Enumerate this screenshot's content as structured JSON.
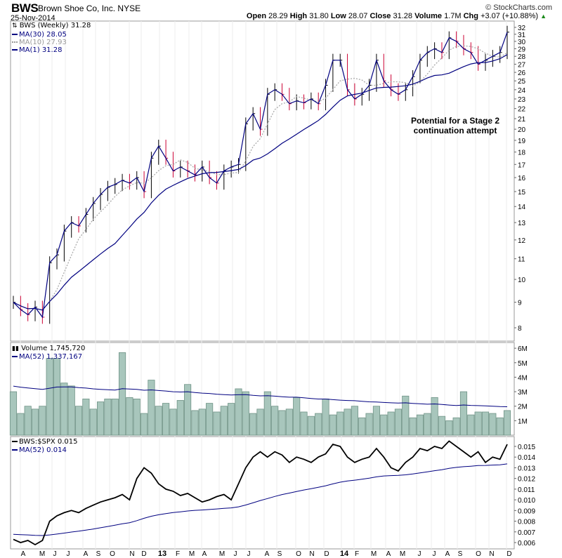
{
  "header": {
    "symbol": "BWS",
    "company": "Brown Shoe Co, Inc.",
    "exchange": "NYSE",
    "date": "25-Nov-2014",
    "copyright": "© StockCharts.com",
    "open_label": "Open",
    "open": "28.29",
    "high_label": "High",
    "high": "31.80",
    "low_label": "Low",
    "low": "28.07",
    "close_label": "Close",
    "close": "31.28",
    "volume_label": "Volume",
    "volume": "1.7M",
    "chg_label": "Chg",
    "chg": "+3.07 (+10.88%)"
  },
  "legends": {
    "price": "BWS (Weekly) 31.28",
    "ma30": "MA(30) 28.05",
    "ma10": "MA(10) 27.93",
    "ma1": "MA(1) 31.28",
    "volume": "Volume 1,745,720",
    "vol_ma": "MA(52) 1,337,167",
    "ratio": "BWS:$SPX 0.015",
    "ratio_ma": "MA(52) 0.014"
  },
  "annotation": {
    "line1": "Potential for a Stage 2",
    "line2": "continuation attempt"
  },
  "colors": {
    "price": "#000080",
    "up_bar": "#000000",
    "down_bar": "#cc0033",
    "ma30": "#000080",
    "ma10": "#aaaaaa",
    "volume": "#a8c6bc",
    "volume_edge": "#6f9386",
    "ratio": "#000000",
    "ratio_ma": "#000080"
  },
  "chart_data": [
    {
      "type": "line",
      "title": "BWS (Weekly)",
      "scale": "log",
      "ylim": [
        8,
        32
      ],
      "yticks": [
        8,
        9,
        10,
        11,
        12,
        13,
        14,
        15,
        16,
        17,
        18,
        19,
        20,
        21,
        22,
        23,
        24,
        25,
        26,
        27,
        28,
        29,
        30,
        31,
        32
      ],
      "x_labels": [
        "A",
        "M",
        "J",
        "J",
        "A",
        "S",
        "O",
        "N",
        "D",
        "13",
        "F",
        "M",
        "A",
        "M",
        "J",
        "J",
        "A",
        "S",
        "O",
        "N",
        "D",
        "14",
        "F",
        "M",
        "A",
        "M",
        "J",
        "J",
        "A",
        "S",
        "O",
        "N",
        "D"
      ],
      "close": [
        9.0,
        8.7,
        8.5,
        8.8,
        8.4,
        10.8,
        11.2,
        12.5,
        13.0,
        12.8,
        13.5,
        14.2,
        14.8,
        15.3,
        15.5,
        15.8,
        15.6,
        16.0,
        15.0,
        17.5,
        18.5,
        17.5,
        16.5,
        16.8,
        16.5,
        16.2,
        16.8,
        16.0,
        15.6,
        16.5,
        16.8,
        17.0,
        20.5,
        21.5,
        20.0,
        23.5,
        24.0,
        23.5,
        22.5,
        22.8,
        22.6,
        23.0,
        22.5,
        24.5,
        27.5,
        27.5,
        24.0,
        23.0,
        23.5,
        24.5,
        27.5,
        25.0,
        24.0,
        23.5,
        24.0,
        25.5,
        27.5,
        28.5,
        29.0,
        28.5,
        30.5,
        30.0,
        29.0,
        28.5,
        27.0,
        27.5,
        28.0,
        28.5,
        31.3
      ],
      "ma_periods": {
        "ma30": 15,
        "ma10": 5
      }
    },
    {
      "type": "bar",
      "title": "Volume",
      "unit": "M",
      "ylim": [
        0,
        6.2
      ],
      "yticks": [
        1,
        2,
        3,
        4,
        5,
        6
      ],
      "ytick_labels": [
        "1M",
        "2M",
        "3M",
        "4M",
        "5M",
        "6M"
      ],
      "values": [
        3.0,
        1.5,
        2.0,
        1.8,
        2.0,
        5.3,
        5.3,
        3.6,
        3.4,
        2.0,
        2.5,
        1.8,
        2.3,
        2.5,
        2.5,
        5.7,
        2.6,
        2.5,
        1.5,
        3.8,
        2.0,
        2.2,
        1.8,
        2.4,
        3.5,
        1.7,
        1.8,
        2.2,
        1.6,
        2.0,
        2.2,
        3.2,
        3.0,
        1.5,
        1.8,
        3.0,
        2.0,
        1.7,
        1.8,
        2.6,
        1.6,
        1.3,
        1.5,
        2.5,
        1.4,
        1.6,
        1.8,
        2.0,
        1.2,
        1.5,
        2.0,
        1.4,
        1.6,
        1.8,
        2.7,
        1.2,
        1.4,
        1.5,
        2.6,
        1.3,
        1.0,
        1.2,
        3.0,
        1.4,
        1.6,
        1.6,
        1.5,
        1.2,
        1.7
      ],
      "ma_seed": 3.4
    },
    {
      "type": "line",
      "title": "BWS:$SPX",
      "ylim": [
        0.0055,
        0.016
      ],
      "yticks": [
        0.006,
        0.007,
        0.008,
        0.009,
        0.01,
        0.011,
        0.012,
        0.013,
        0.014,
        0.015
      ],
      "ytick_labels": [
        "0.006",
        "0.007",
        "0.008",
        "0.009",
        "0.010",
        "0.011",
        "0.012",
        "0.013",
        "0.014",
        "0.015"
      ],
      "values": [
        0.0063,
        0.006,
        0.0062,
        0.0058,
        0.0062,
        0.008,
        0.0085,
        0.0088,
        0.009,
        0.0088,
        0.0092,
        0.0095,
        0.0098,
        0.01,
        0.0102,
        0.0105,
        0.01,
        0.012,
        0.013,
        0.0125,
        0.0115,
        0.011,
        0.0108,
        0.0104,
        0.0106,
        0.0102,
        0.0098,
        0.01,
        0.0103,
        0.0105,
        0.01,
        0.0115,
        0.013,
        0.014,
        0.0145,
        0.014,
        0.0145,
        0.0142,
        0.0135,
        0.014,
        0.0138,
        0.0135,
        0.014,
        0.0143,
        0.0152,
        0.015,
        0.014,
        0.0135,
        0.0138,
        0.014,
        0.0148,
        0.014,
        0.013,
        0.0127,
        0.0135,
        0.014,
        0.0148,
        0.0146,
        0.015,
        0.0148,
        0.0155,
        0.015,
        0.0145,
        0.014,
        0.0145,
        0.0135,
        0.014,
        0.0138,
        0.0152
      ],
      "ma_seed": 0.0068
    }
  ]
}
